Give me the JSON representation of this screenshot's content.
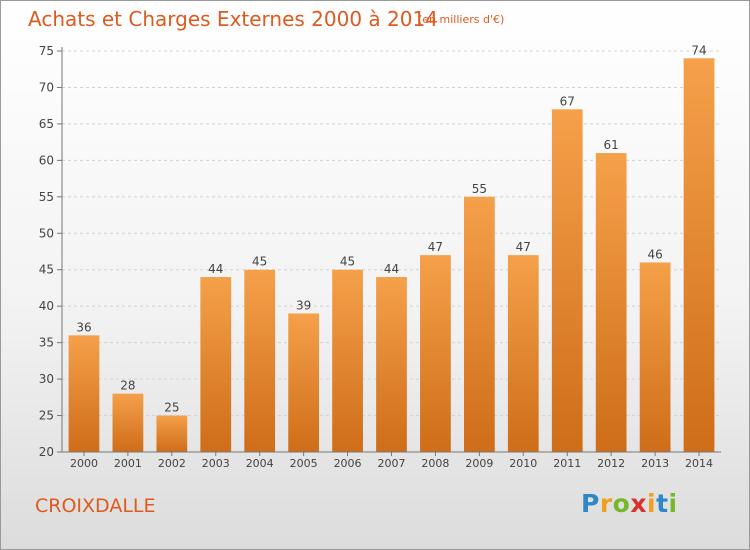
{
  "chart_data": {
    "type": "bar",
    "title": "Achats et Charges Externes 2000 à 2014",
    "subtitle": "(en milliers d'€)",
    "categories": [
      "2000",
      "2001",
      "2002",
      "2003",
      "2004",
      "2005",
      "2006",
      "2007",
      "2008",
      "2009",
      "2010",
      "2011",
      "2012",
      "2013",
      "2014"
    ],
    "values": [
      36,
      28,
      25,
      44,
      45,
      39,
      45,
      44,
      47,
      55,
      47,
      67,
      61,
      46,
      74
    ],
    "ylim": [
      20,
      75
    ],
    "yticks": [
      20,
      25,
      30,
      35,
      40,
      45,
      50,
      55,
      60,
      65,
      70,
      75
    ],
    "grid": true,
    "bar_color": "#f5a04a",
    "bar_color_dark": "#cf6d18"
  },
  "location_label": "CROIXDALLE",
  "brand": {
    "letters": [
      "P",
      "r",
      "o",
      "x",
      "i",
      "t",
      "i"
    ],
    "colors": [
      "#2e88c8",
      "#f0a020",
      "#77b82a",
      "#d8302a",
      "#f0a020",
      "#2e88c8",
      "#77b82a"
    ]
  }
}
